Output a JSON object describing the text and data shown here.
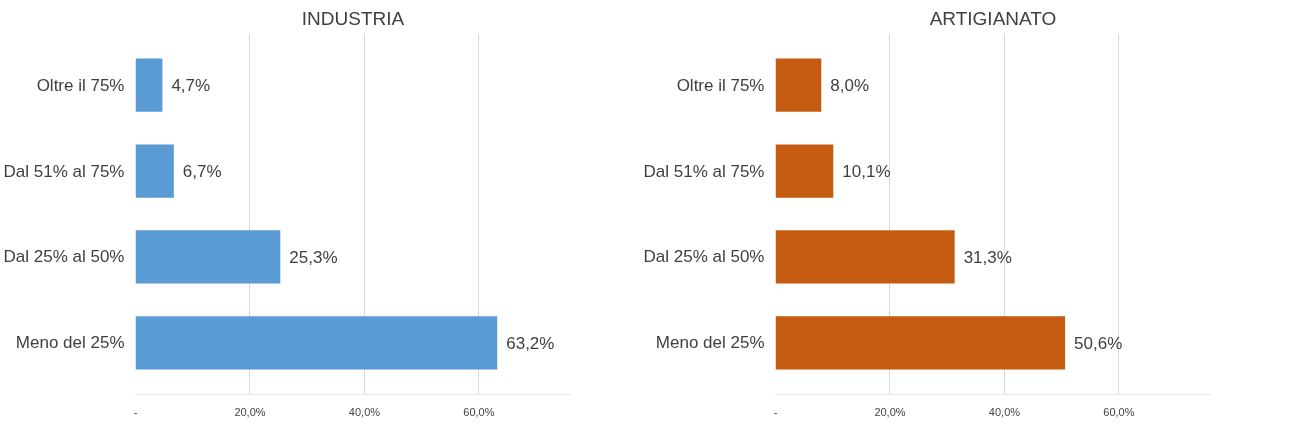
{
  "chart_data": [
    {
      "type": "bar",
      "orientation": "horizontal",
      "title": "INDUSTRIA",
      "categories": [
        "Oltre il 75%",
        "Dal 51% al 75%",
        "Dal 25% al 50%",
        "Meno del 25%"
      ],
      "values": [
        4.7,
        6.7,
        25.3,
        63.2
      ],
      "color": "#5b9bd5",
      "value_labels": [
        "4,7%",
        "6,7%",
        "25,3%",
        "63,2%"
      ],
      "xlim": [
        0,
        76
      ],
      "xticks": [
        {
          "value": 0,
          "label": "-"
        },
        {
          "value": 20,
          "label": "20,0%"
        },
        {
          "value": 40,
          "label": "40,0%"
        },
        {
          "value": 60,
          "label": "60,0%"
        }
      ],
      "grid": "x"
    },
    {
      "type": "bar",
      "orientation": "horizontal",
      "title": "ARTIGIANATO",
      "categories": [
        "Oltre il 75%",
        "Dal 51% al 75%",
        "Dal 25% al 50%",
        "Meno del 25%"
      ],
      "values": [
        8.0,
        10.1,
        31.3,
        50.6
      ],
      "color": "#c55a11",
      "value_labels": [
        "8,0%",
        "10,1%",
        "31,3%",
        "50,6%"
      ],
      "xlim": [
        0,
        76
      ],
      "xticks": [
        {
          "value": 0,
          "label": "-"
        },
        {
          "value": 20,
          "label": "20,0%"
        },
        {
          "value": 40,
          "label": "40,0%"
        },
        {
          "value": 60,
          "label": "60,0%"
        }
      ],
      "grid": "x"
    }
  ]
}
